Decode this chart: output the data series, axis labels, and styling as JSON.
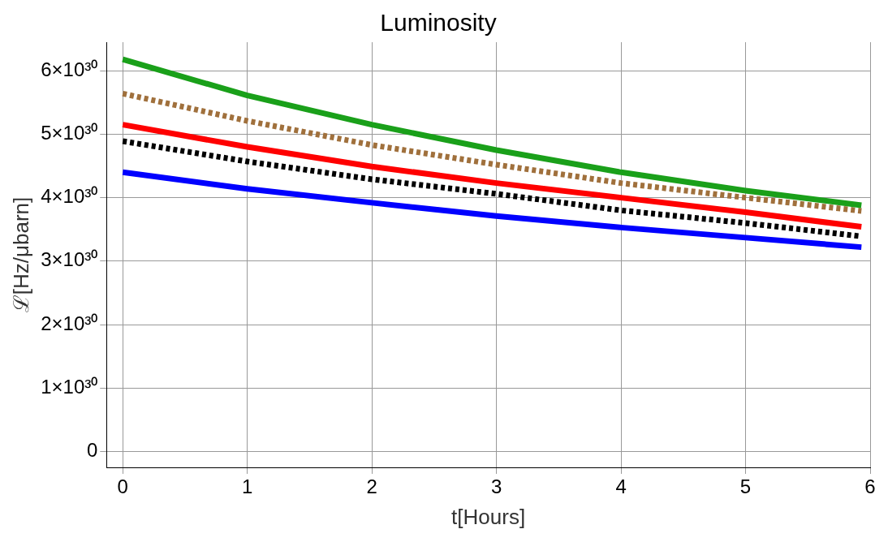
{
  "chart_data": {
    "type": "line",
    "title": "Luminosity",
    "xlabel": "t[Hours]",
    "ylabel": "ℒ[Hz/μbarn]",
    "x": [
      0,
      1,
      2,
      3,
      4,
      5,
      5.93
    ],
    "series": [
      {
        "color": "#1aa01a",
        "line_style": "solid",
        "values": [
          6.18e+30,
          5.61e+30,
          5.15e+30,
          4.75e+30,
          4.4e+30,
          4.11e+30,
          3.88e+30
        ]
      },
      {
        "color": "#a0703c",
        "line_style": "dotted",
        "values": [
          5.64e+30,
          5.21e+30,
          4.83e+30,
          4.52e+30,
          4.23e+30,
          4e+30,
          3.79e+30
        ]
      },
      {
        "color": "#ff0000",
        "line_style": "solid",
        "values": [
          5.15e+30,
          4.8e+30,
          4.49e+30,
          4.23e+30,
          4e+30,
          3.77e+30,
          3.54e+30
        ]
      },
      {
        "color": "#000000",
        "line_style": "dotted",
        "values": [
          4.89e+30,
          4.57e+30,
          4.29e+30,
          4.06e+30,
          3.8e+30,
          3.6e+30,
          3.39e+30
        ]
      },
      {
        "color": "#0000ff",
        "line_style": "solid",
        "values": [
          4.4e+30,
          4.14e+30,
          3.92e+30,
          3.71e+30,
          3.53e+30,
          3.37e+30,
          3.22e+30
        ]
      }
    ],
    "xlim": [
      -0.13,
      6.0
    ],
    "xticks": [
      0,
      1,
      2,
      3,
      4,
      5,
      6
    ],
    "ylim": [
      -2.5e+29,
      6.45e+30
    ],
    "yticks": [
      0,
      {
        "value": 1e+30,
        "label": "1×10³⁰"
      },
      {
        "value": 2e+30,
        "label": "2×10³⁰"
      },
      {
        "value": 3e+30,
        "label": "3×10³⁰"
      },
      {
        "value": 4e+30,
        "label": "4×10³⁰"
      },
      {
        "value": 5e+30,
        "label": "5×10³⁰"
      },
      {
        "value": 6e+30,
        "label": "6×10³⁰"
      }
    ],
    "grid": true,
    "legend": false,
    "marker": "none"
  }
}
